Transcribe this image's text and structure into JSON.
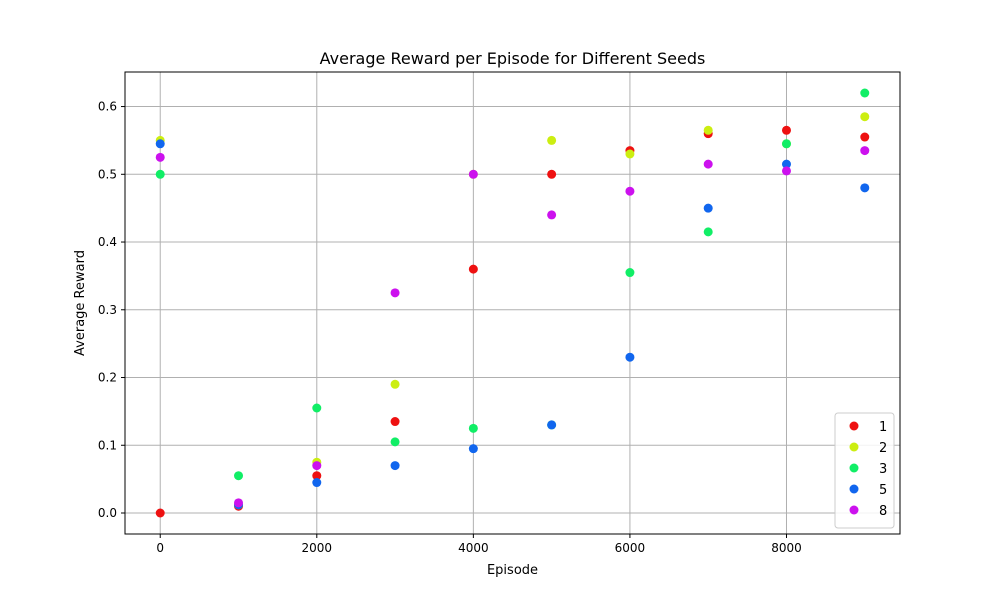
{
  "chart_data": {
    "type": "scatter",
    "title": "Average Reward per Episode for Different Seeds",
    "xlabel": "Episode",
    "ylabel": "Average Reward",
    "xlim": [
      -450,
      9450
    ],
    "ylim": [
      -0.031,
      0.651
    ],
    "xticks": [
      0,
      2000,
      4000,
      6000,
      8000
    ],
    "yticks": [
      0.0,
      0.1,
      0.2,
      0.3,
      0.4,
      0.5,
      0.6
    ],
    "xtick_labels": [
      "0",
      "2000",
      "4000",
      "6000",
      "8000"
    ],
    "ytick_labels": [
      "0.0",
      "0.1",
      "0.2",
      "0.3",
      "0.4",
      "0.5",
      "0.6"
    ],
    "grid": true,
    "legend_position": "lower-right",
    "x": [
      0,
      1000,
      2000,
      3000,
      4000,
      5000,
      6000,
      7000,
      8000,
      9000
    ],
    "series": [
      {
        "name": "1",
        "color": "#ee1111",
        "values": [
          0.0,
          0.01,
          0.055,
          0.135,
          0.36,
          0.5,
          0.535,
          0.56,
          0.565,
          0.555
        ]
      },
      {
        "name": "2",
        "color": "#ccee11",
        "values": [
          0.55,
          0.012,
          0.075,
          0.19,
          0.5,
          0.55,
          0.53,
          0.565,
          0.545,
          0.585
        ]
      },
      {
        "name": "3",
        "color": "#11ee66",
        "values": [
          0.5,
          0.055,
          0.155,
          0.105,
          0.125,
          0.13,
          0.355,
          0.415,
          0.545,
          0.62
        ]
      },
      {
        "name": "5",
        "color": "#1166ee",
        "values": [
          0.545,
          0.012,
          0.045,
          0.07,
          0.095,
          0.13,
          0.23,
          0.45,
          0.515,
          0.48
        ]
      },
      {
        "name": "8",
        "color": "#cc11ee",
        "values": [
          0.525,
          0.015,
          0.07,
          0.325,
          0.5,
          0.44,
          0.475,
          0.515,
          0.505,
          0.535
        ]
      }
    ]
  }
}
